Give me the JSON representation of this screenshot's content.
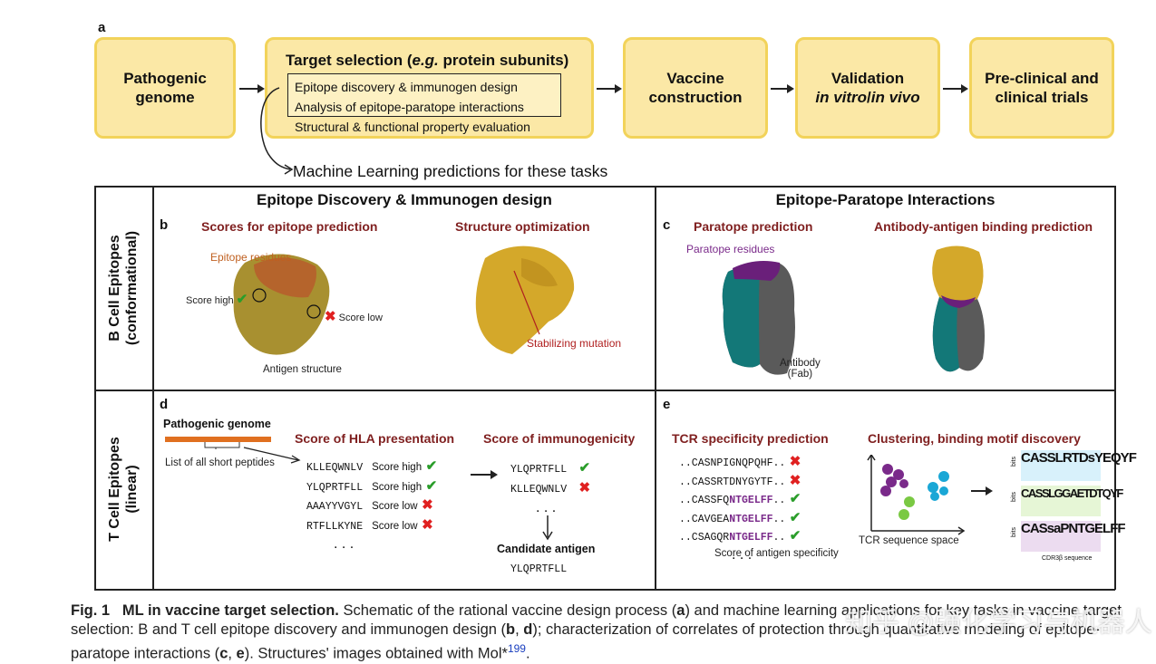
{
  "panel_a_label": "a",
  "flow": {
    "box1": "Pathogenic genome",
    "box2_title_pre": "Target selection (",
    "box2_title_em": "e.g.",
    "box2_title_post": " protein subunits)",
    "box2_items": [
      "Epitope discovery & immunogen design",
      "Analysis of epitope-paratope interactions",
      "Structural & functional property evaluation"
    ],
    "box3": "Vaccine construction",
    "box4_line1": "Validation",
    "box4_line2_a": "in vitro",
    "box4_line2_b": "/",
    "box4_line2_c": "in vivo",
    "box5": "Pre-clinical and clinical trials",
    "ml_note": "Machine Learning predictions for these tasks"
  },
  "columns": {
    "left": "Epitope Discovery & Immunogen design",
    "right": "Epitope-Paratope Interactions"
  },
  "rows": {
    "b_line1": "B Cell Epitopes",
    "b_line2": "(conformational)",
    "t_line1": "T Cell Epitopes",
    "t_line2": "(linear)"
  },
  "panel_b": {
    "letter": "b",
    "sub1": "Scores for epitope prediction",
    "sub2": "Structure optimization",
    "epitope_residues": "Epitope residues",
    "score_high": "Score high",
    "score_low": "Score low",
    "antigen_structure": "Antigen structure",
    "stabilizing": "Stabilizing mutation"
  },
  "panel_c": {
    "letter": "c",
    "sub1": "Paratope prediction",
    "sub2": "Antibody-antigen binding prediction",
    "paratope_residues": "Paratope residues",
    "antibody": "Antibody",
    "fab": "(Fab)"
  },
  "panel_d": {
    "letter": "d",
    "genome": "Pathogenic genome",
    "peptides_note": "List of all short peptides",
    "sub1": "Score of HLA presentation",
    "sub2": "Score of immunogenicity",
    "peptides": [
      {
        "seq": "KLLEQWNLV",
        "score": "Score high",
        "ok": true
      },
      {
        "seq": "YLQPRTFLL",
        "score": "Score high",
        "ok": true
      },
      {
        "seq": "AAAYYVGYL",
        "score": "Score low",
        "ok": false
      },
      {
        "seq": "RTFLLKYNE",
        "score": "Score low",
        "ok": false
      }
    ],
    "ellipsis": ". . .",
    "immuno": [
      {
        "seq": "YLQPRTFLL",
        "ok": true
      },
      {
        "seq": "KLLEQWNLV",
        "ok": false
      }
    ],
    "candidate_label": "Candidate antigen",
    "candidate_seq": "YLQPRTFLL"
  },
  "panel_e": {
    "letter": "e",
    "sub1": "TCR specificity prediction",
    "sub2": "Clustering, binding motif discovery",
    "tcrs": [
      {
        "pre": "..CASNPIGNQPQHF..",
        "hl": "",
        "ok": false
      },
      {
        "pre": "..CASSRTDNYGYTF..",
        "hl": "",
        "ok": false
      },
      {
        "pre": "..CASSFQ",
        "hl": "NTGELFF",
        "post": "..",
        "ok": true
      },
      {
        "pre": "..CAVGEA",
        "hl": "NTGELFF",
        "post": "..",
        "ok": true
      },
      {
        "pre": "..CSAGQR",
        "hl": "NTGELFF",
        "post": "..",
        "ok": true
      }
    ],
    "ellipsis": ". . .",
    "score_note": "Score of antigen specificity",
    "space_label": "TCR sequence space",
    "bits": "bits",
    "logos": [
      "CASSLRTDsYEQYF",
      "CASSLGGAETDTQYF",
      "CASsaPNTGELFF"
    ],
    "cdr_label": "CDR3β sequence",
    "colors": {
      "purple": "#7a2a8a",
      "teal": "#1aa7d6",
      "green": "#7ac943",
      "motif": "#6a2a8a"
    }
  },
  "caption": {
    "fig": "Fig. 1",
    "title": "ML in vaccine target selection.",
    "text1": " Schematic of the rational vaccine design process (",
    "a": "a",
    "text2": ") and machine learning applications for key tasks in vaccine target selection: B and T cell epitope discovery and immunogen design (",
    "b": "b",
    "sep1": ", ",
    "d": "d",
    "text3": "); characterization of correlates of protection through quantitative modeling of epitope-paratope interactions (",
    "c": "c",
    "sep2": ", ",
    "e": "e",
    "text4": "). Structures' images obtained with Mol*",
    "ref": "199",
    "end": "."
  },
  "watermark": "知乎 @强化学习与机器人"
}
